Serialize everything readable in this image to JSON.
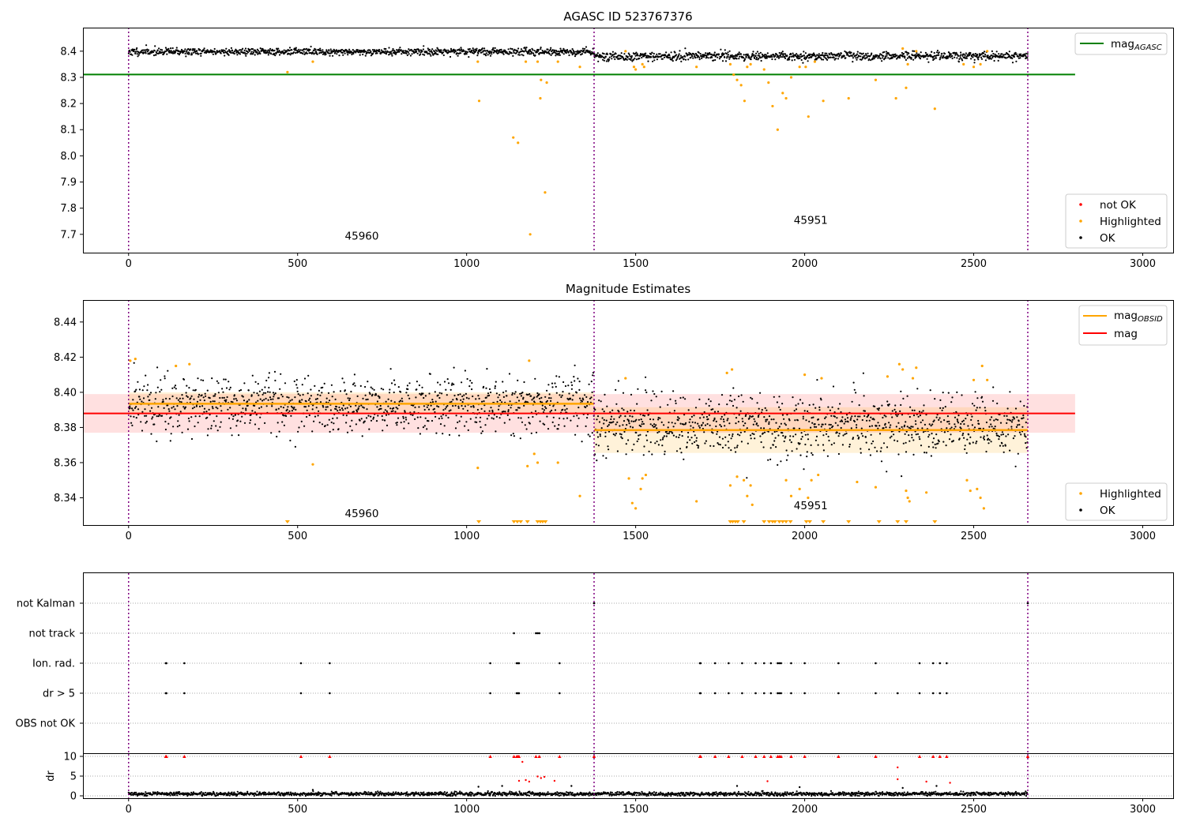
{
  "chart_data": [
    {
      "type": "scatter",
      "title": "AGASC ID 523767376",
      "xlim": [
        -135,
        3090
      ],
      "ylim": [
        7.63,
        8.49
      ],
      "xticks": [
        0,
        500,
        1000,
        1500,
        2000,
        2500,
        3000
      ],
      "yticks": [
        7.7,
        7.8,
        7.9,
        8.0,
        8.1,
        8.2,
        8.3,
        8.4
      ],
      "legend_lines": [
        {
          "label": "mag",
          "sub": "AGASC",
          "color": "#008000"
        }
      ],
      "legend_points": [
        {
          "label": "not OK",
          "color": "#ff0000"
        },
        {
          "label": "Highlighted",
          "color": "#ffa500"
        },
        {
          "label": "OK",
          "color": "#000000"
        }
      ],
      "mag_agasc": 8.311,
      "obsid_boundaries": [
        0,
        1377,
        2660
      ],
      "obsids": [
        {
          "label": "45960",
          "x": 690,
          "y": 7.68
        },
        {
          "label": "45951",
          "x": 2018,
          "y": 7.74
        }
      ],
      "ok_segments": [
        {
          "x0": 0,
          "x1": 1377,
          "center": 8.398,
          "spread": 0.007
        },
        {
          "x0": 1377,
          "x1": 2660,
          "center": 8.381,
          "spread": 0.008
        }
      ],
      "highlighted": [
        [
          470,
          8.32
        ],
        [
          545,
          8.36
        ],
        [
          1033,
          8.36
        ],
        [
          1037,
          8.21
        ],
        [
          1138,
          8.07
        ],
        [
          1152,
          8.05
        ],
        [
          1175,
          8.36
        ],
        [
          1188,
          7.7
        ],
        [
          1210,
          8.36
        ],
        [
          1218,
          8.22
        ],
        [
          1220,
          8.29
        ],
        [
          1232,
          7.86
        ],
        [
          1237,
          8.28
        ],
        [
          1270,
          8.36
        ],
        [
          1335,
          8.34
        ],
        [
          1470,
          8.4
        ],
        [
          1495,
          8.34
        ],
        [
          1500,
          8.33
        ],
        [
          1520,
          8.35
        ],
        [
          1525,
          8.34
        ],
        [
          1680,
          8.34
        ],
        [
          1780,
          8.35
        ],
        [
          1790,
          8.31
        ],
        [
          1800,
          8.29
        ],
        [
          1812,
          8.27
        ],
        [
          1822,
          8.21
        ],
        [
          1830,
          8.34
        ],
        [
          1840,
          8.35
        ],
        [
          1880,
          8.33
        ],
        [
          1893,
          8.28
        ],
        [
          1905,
          8.19
        ],
        [
          1920,
          8.1
        ],
        [
          1935,
          8.24
        ],
        [
          1945,
          8.22
        ],
        [
          1960,
          8.3
        ],
        [
          1985,
          8.34
        ],
        [
          2003,
          8.34
        ],
        [
          2011,
          8.15
        ],
        [
          2030,
          8.36
        ],
        [
          2055,
          8.21
        ],
        [
          2130,
          8.22
        ],
        [
          2210,
          8.29
        ],
        [
          2270,
          8.22
        ],
        [
          2290,
          8.41
        ],
        [
          2300,
          8.26
        ],
        [
          2305,
          8.35
        ],
        [
          2330,
          8.4
        ],
        [
          2385,
          8.18
        ],
        [
          2470,
          8.35
        ],
        [
          2500,
          8.34
        ],
        [
          2520,
          8.35
        ],
        [
          2540,
          8.4
        ]
      ]
    },
    {
      "type": "scatter",
      "title": "Magnitude Estimates",
      "xlim": [
        -135,
        3090
      ],
      "ylim": [
        8.3245,
        8.4525
      ],
      "xticks": [
        0,
        500,
        1000,
        1500,
        2000,
        2500,
        3000
      ],
      "yticks": [
        8.34,
        8.36,
        8.38,
        8.4,
        8.42,
        8.44
      ],
      "legend_lines": [
        {
          "label": "mag",
          "sub": "OBSID",
          "color": "#ffa500"
        },
        {
          "label": "mag",
          "sub": "",
          "color": "#ff0000"
        }
      ],
      "legend_points": [
        {
          "label": "Highlighted",
          "color": "#ffa500"
        },
        {
          "label": "OK",
          "color": "#000000"
        }
      ],
      "mag": 8.388,
      "mag_band": [
        8.377,
        8.399
      ],
      "obsid_means": [
        {
          "x0": 0,
          "x1": 1377,
          "mean": 8.3935,
          "band": [
            8.388,
            8.4
          ]
        },
        {
          "x0": 1377,
          "x1": 2660,
          "mean": 8.3785,
          "band": [
            8.3655,
            8.3915
          ]
        }
      ],
      "obsid_boundaries": [
        0,
        1377,
        2660
      ],
      "obsids": [
        {
          "label": "45960",
          "x": 690,
          "y": 8.329
        },
        {
          "label": "45951",
          "x": 2018,
          "y": 8.3335
        }
      ],
      "ok_segments": [
        {
          "x0": 0,
          "x1": 1377,
          "center": 8.393,
          "spread": 0.008
        },
        {
          "x0": 1377,
          "x1": 2660,
          "center": 8.381,
          "spread": 0.009
        }
      ],
      "highlighted": [
        [
          5,
          8.418
        ],
        [
          20,
          8.419
        ],
        [
          140,
          8.415
        ],
        [
          180,
          8.416
        ],
        [
          545,
          8.359
        ],
        [
          1033,
          8.357
        ],
        [
          1180,
          8.358
        ],
        [
          1185,
          8.418
        ],
        [
          1200,
          8.365
        ],
        [
          1210,
          8.36
        ],
        [
          1270,
          8.36
        ],
        [
          1335,
          8.341
        ],
        [
          1470,
          8.408
        ],
        [
          1480,
          8.351
        ],
        [
          1490,
          8.337
        ],
        [
          1500,
          8.334
        ],
        [
          1515,
          8.345
        ],
        [
          1520,
          8.351
        ],
        [
          1530,
          8.353
        ],
        [
          1680,
          8.338
        ],
        [
          1770,
          8.411
        ],
        [
          1785,
          8.413
        ],
        [
          1780,
          8.347
        ],
        [
          1800,
          8.352
        ],
        [
          1820,
          8.35
        ],
        [
          1830,
          8.341
        ],
        [
          1840,
          8.347
        ],
        [
          1845,
          8.336
        ],
        [
          1945,
          8.35
        ],
        [
          1960,
          8.341
        ],
        [
          1985,
          8.345
        ],
        [
          2000,
          8.41
        ],
        [
          2010,
          8.34
        ],
        [
          2020,
          8.35
        ],
        [
          2040,
          8.353
        ],
        [
          2050,
          8.408
        ],
        [
          2155,
          8.349
        ],
        [
          2210,
          8.346
        ],
        [
          2245,
          8.409
        ],
        [
          2280,
          8.416
        ],
        [
          2290,
          8.413
        ],
        [
          2300,
          8.344
        ],
        [
          2305,
          8.34
        ],
        [
          2310,
          8.338
        ],
        [
          2320,
          8.408
        ],
        [
          2330,
          8.414
        ],
        [
          2360,
          8.343
        ],
        [
          2480,
          8.35
        ],
        [
          2490,
          8.344
        ],
        [
          2500,
          8.407
        ],
        [
          2510,
          8.345
        ],
        [
          2520,
          8.34
        ],
        [
          2525,
          8.415
        ],
        [
          2530,
          8.334
        ],
        [
          2540,
          8.407
        ]
      ],
      "clipped_low": [
        470,
        1036,
        1140,
        1150,
        1160,
        1180,
        1210,
        1218,
        1225,
        1233,
        1780,
        1787,
        1795,
        1802,
        1820,
        1880,
        1895,
        1905,
        1912,
        1925,
        1935,
        1945,
        1958,
        2005,
        2015,
        2055,
        2130,
        2220,
        2275,
        2300,
        2385
      ]
    },
    {
      "type": "scatter",
      "title": "",
      "xlim": [
        -135,
        3090
      ],
      "xticks": [
        0,
        500,
        1000,
        1500,
        2000,
        2500,
        3000
      ],
      "flags": [
        "not Kalman",
        "not track",
        "Ion. rad.",
        "dr > 5",
        "OBS not OK"
      ],
      "flag_points": {
        "not Kalman": [
          1377,
          2660
        ],
        "not track": [
          1140,
          1205,
          1210,
          1215
        ],
        "Ion. rad.": [
          110,
          112,
          165,
          510,
          595,
          1070,
          1148,
          1152,
          1155,
          1275,
          1690,
          1692,
          1735,
          1775,
          1815,
          1855,
          1880,
          1900,
          1920,
          1925,
          1930,
          1960,
          2000,
          2100,
          2210,
          2340,
          2380,
          2400,
          2420
        ],
        "dr > 5": [
          110,
          112,
          165,
          510,
          595,
          1070,
          1148,
          1152,
          1155,
          1275,
          1690,
          1692,
          1735,
          1775,
          1815,
          1855,
          1880,
          1900,
          1920,
          1925,
          1930,
          1960,
          2000,
          2100,
          2210,
          2275,
          2340,
          2380,
          2400,
          2420
        ],
        "OBS not OK": []
      },
      "obsid_boundaries": [
        0,
        1377,
        2660
      ]
    },
    {
      "type": "scatter",
      "title": "",
      "ylabel": "dr",
      "xlim": [
        -135,
        3090
      ],
      "ylim": [
        -0.6,
        10.6
      ],
      "xticks": [
        0,
        500,
        1000,
        1500,
        2000,
        2500,
        3000
      ],
      "yticks": [
        0,
        5,
        10
      ],
      "dr_capped_red": [
        1377,
        2660,
        110,
        112,
        165,
        510,
        595,
        1070,
        1140,
        1148,
        1152,
        1155,
        1205,
        1215,
        1275,
        1690,
        1692,
        1735,
        1775,
        1815,
        1855,
        1880,
        1900,
        1920,
        1925,
        1930,
        1960,
        2000,
        2100,
        2210,
        2340,
        2380,
        2400,
        2420
      ],
      "dr_red": [
        [
          2275,
          7.2
        ],
        [
          2275,
          4.2
        ],
        [
          1155,
          3.8
        ],
        [
          1165,
          8.6
        ],
        [
          1175,
          4.0
        ],
        [
          1185,
          3.6
        ],
        [
          1210,
          4.9
        ],
        [
          1220,
          4.5
        ],
        [
          1230,
          4.8
        ],
        [
          1260,
          3.8
        ],
        [
          1890,
          3.7
        ],
        [
          2360,
          3.6
        ],
        [
          2430,
          3.3
        ]
      ],
      "dr_black_outliers": [
        [
          545,
          1.5
        ],
        [
          1035,
          2.3
        ],
        [
          1105,
          2.5
        ],
        [
          1310,
          2.5
        ],
        [
          1800,
          2.5
        ],
        [
          1985,
          2.2
        ],
        [
          2290,
          2.0
        ],
        [
          2390,
          2.5
        ]
      ],
      "dr_baseline": [
        0.5,
        0.4
      ],
      "obsid_boundaries": [
        0,
        1377,
        2660
      ]
    }
  ]
}
